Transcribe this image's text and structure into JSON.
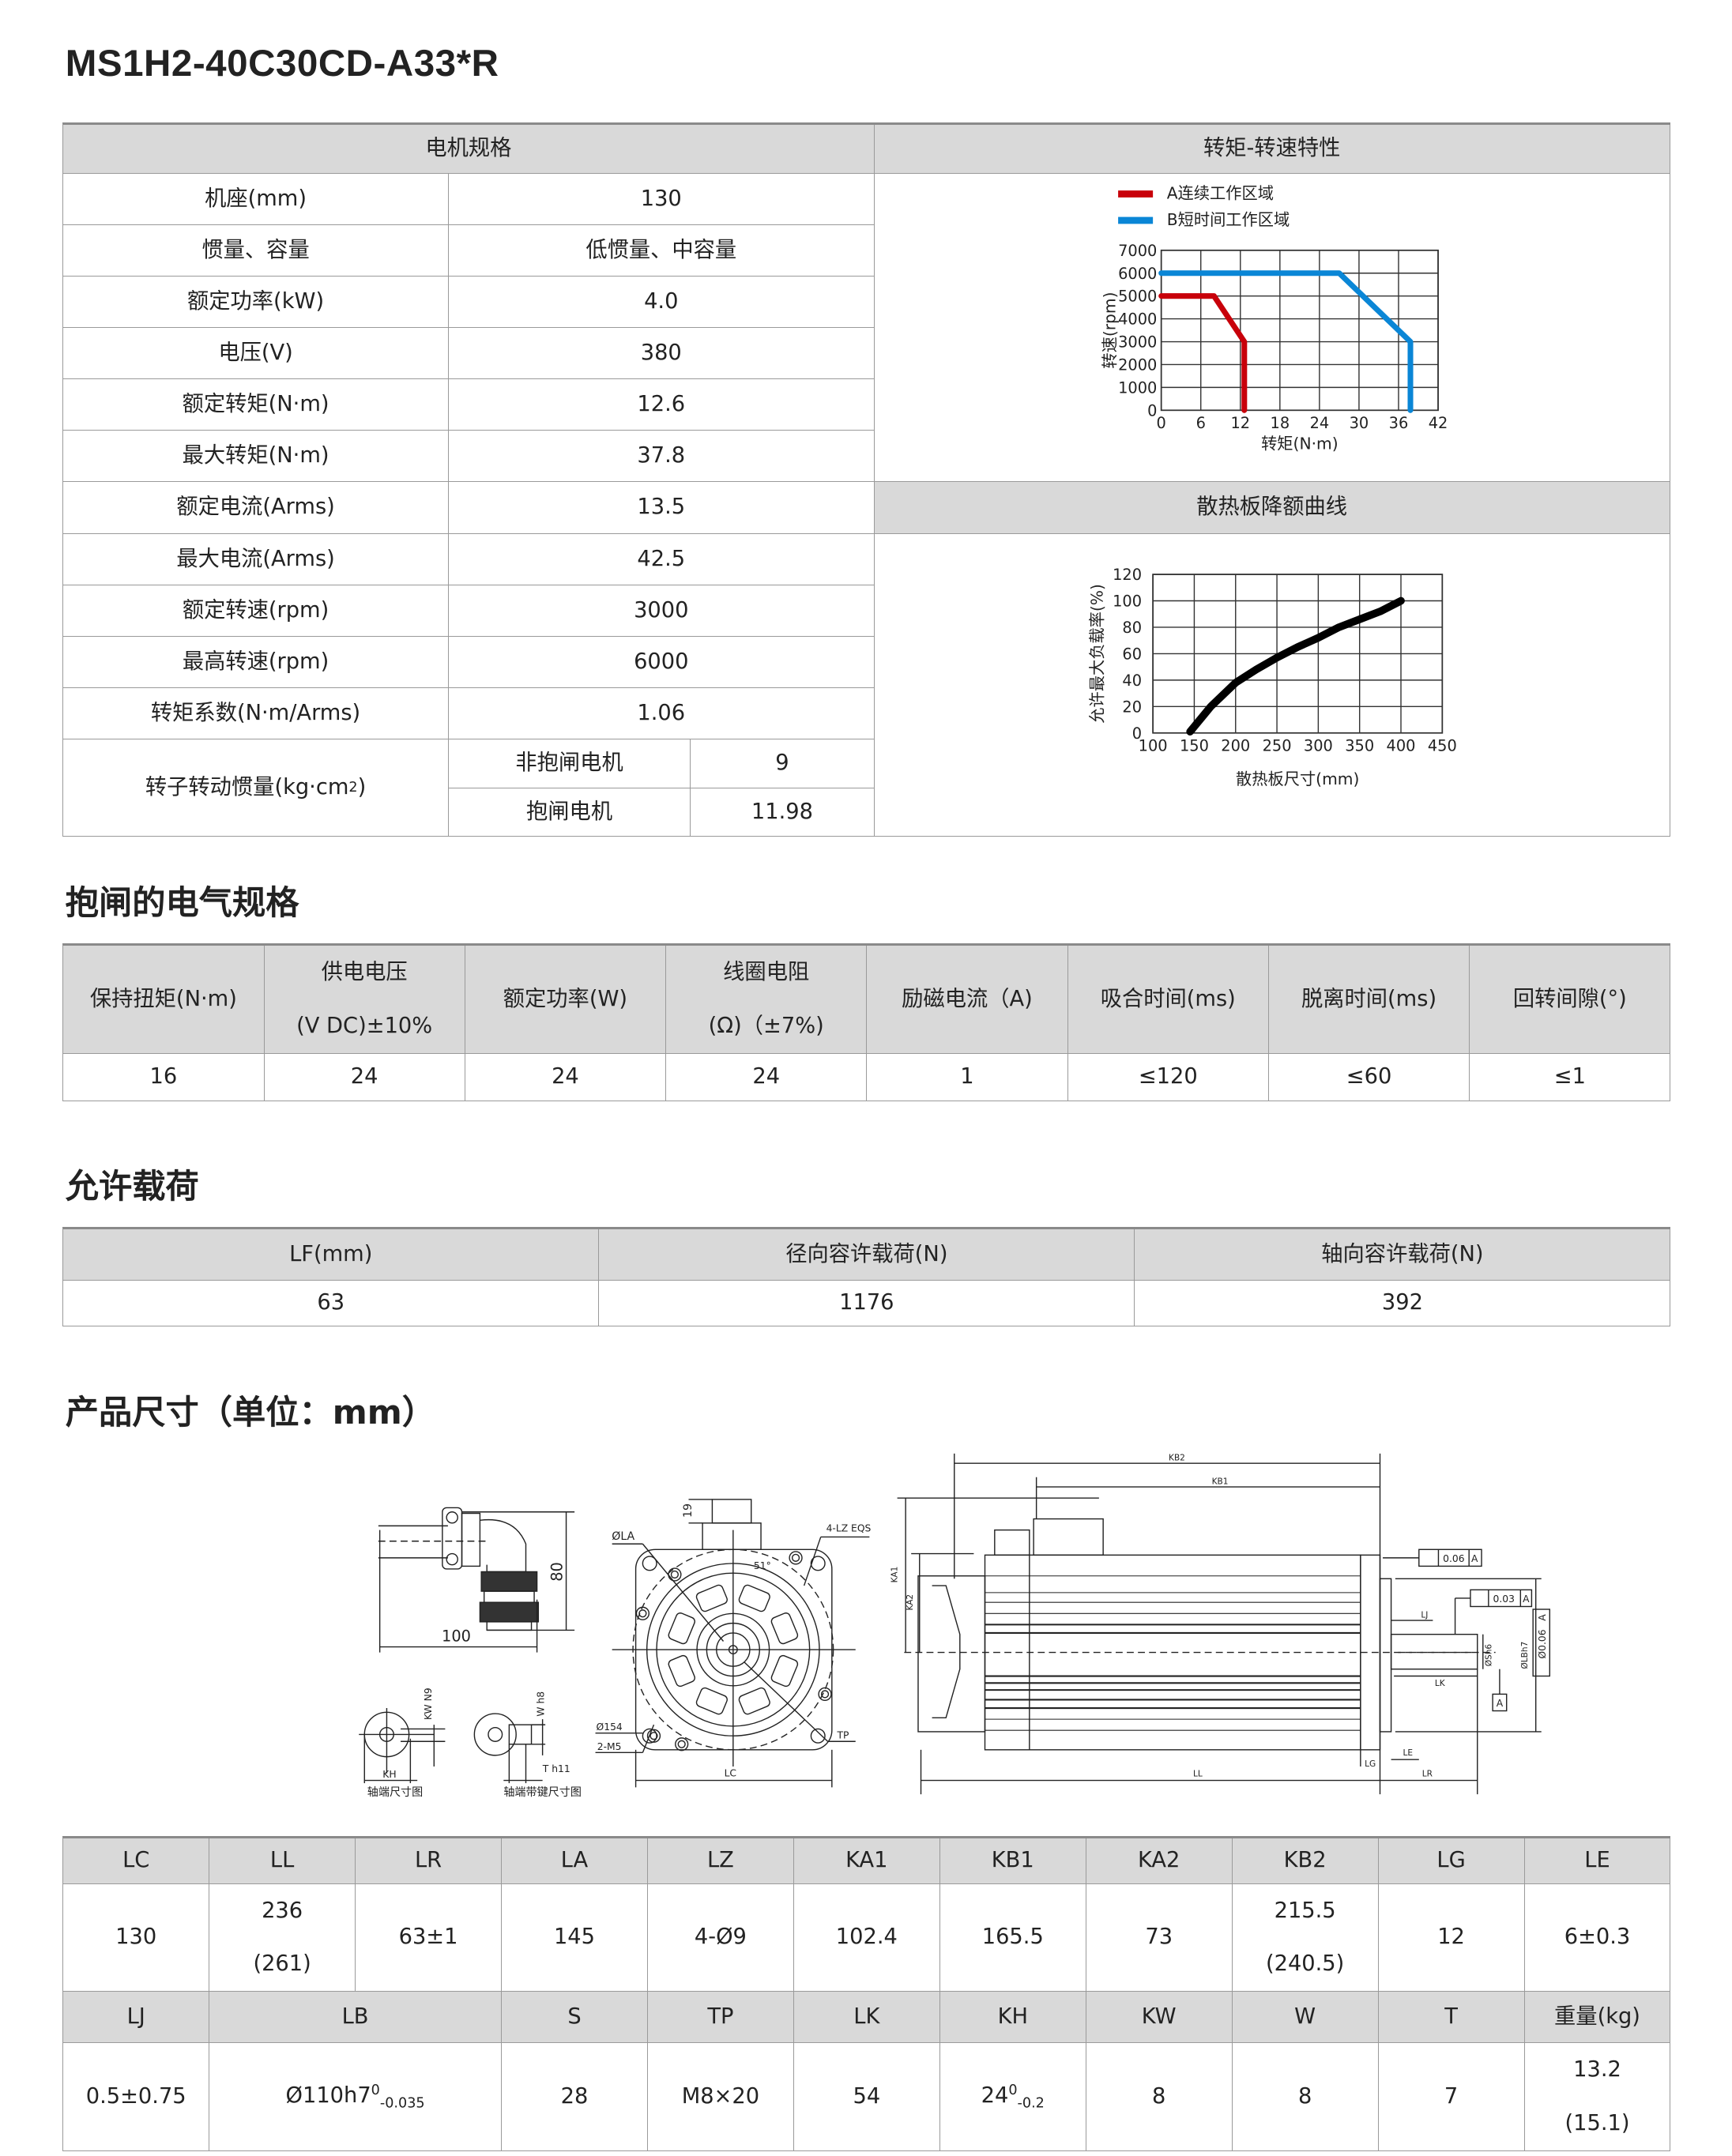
{
  "title": "MS1H2-40C30CD-A33*R",
  "spec": {
    "header_left": "电机规格",
    "header_torque": "转矩-转速特性",
    "header_derating": "散热板降额曲线",
    "rows": [
      {
        "label": "机座(mm)",
        "value": "130"
      },
      {
        "label": "惯量、容量",
        "value": "低惯量、中容量"
      },
      {
        "label": "额定功率(kW)",
        "value": "4.0"
      },
      {
        "label": "电压(V)",
        "value": "380"
      },
      {
        "label": "额定转矩(N·m)",
        "value": "12.6"
      },
      {
        "label": "最大转矩(N·m)",
        "value": "37.8"
      },
      {
        "label": "额定电流(Arms)",
        "value": "13.5"
      },
      {
        "label": "最大电流(Arms)",
        "value": "42.5"
      },
      {
        "label": "额定转速(rpm)",
        "value": "3000"
      },
      {
        "label": "最高转速(rpm)",
        "value": "6000"
      },
      {
        "label": "转矩系数(N·m/Arms)",
        "value": "1.06"
      }
    ],
    "inertia": {
      "label": "转子转动惯量(kg·cm",
      "label_sup": "2",
      "label_end": ")",
      "sub": [
        {
          "label": "非抱闸电机",
          "value": "9"
        },
        {
          "label": "抱闸电机",
          "value": "11.98"
        }
      ]
    }
  },
  "chart_data": [
    {
      "type": "line",
      "xlabel": "转矩(N·m)",
      "ylabel": "转速(rpm)",
      "xlim": [
        0,
        42
      ],
      "ylim": [
        0,
        7000
      ],
      "xticks": [
        0,
        6,
        12,
        18,
        24,
        30,
        36,
        42
      ],
      "yticks": [
        0,
        1000,
        2000,
        3000,
        4000,
        5000,
        6000,
        7000
      ],
      "grid": true,
      "legend_position": "top",
      "series": [
        {
          "name": "A连续工作区域",
          "color": "#c8000a",
          "x": [
            0,
            8,
            12.6,
            12.6
          ],
          "y": [
            5000,
            5000,
            3000,
            0
          ]
        },
        {
          "name": "B短时间工作区域",
          "color": "#0a86d6",
          "x": [
            0,
            27,
            37.8,
            37.8
          ],
          "y": [
            6000,
            6000,
            3000,
            0
          ]
        }
      ]
    },
    {
      "type": "line",
      "xlabel": "散热板尺寸(mm)",
      "ylabel": "允许最大负载率(%)",
      "xlim": [
        100,
        450
      ],
      "ylim": [
        0,
        120
      ],
      "xticks": [
        100,
        150,
        200,
        250,
        300,
        350,
        400,
        450
      ],
      "yticks": [
        0,
        20,
        40,
        60,
        80,
        100,
        120
      ],
      "grid": true,
      "series": [
        {
          "color": "#000000",
          "x": [
            145,
            170,
            200,
            225,
            250,
            275,
            300,
            325,
            350,
            375,
            400
          ],
          "y": [
            1,
            20,
            38,
            48,
            57,
            65,
            72,
            80,
            86,
            92,
            100
          ]
        }
      ]
    }
  ],
  "brake": {
    "title": "抱闸的电气规格",
    "headers": [
      [
        "保持扭矩(N·m)"
      ],
      [
        "供电电压",
        "(V DC)±10%"
      ],
      [
        "额定功率(W)"
      ],
      [
        "线圈电阻",
        "(Ω)（±7%)"
      ],
      [
        "励磁电流（A)"
      ],
      [
        "吸合时间(ms)"
      ],
      [
        "脱离时间(ms)"
      ],
      [
        "回转间隙(°)"
      ]
    ],
    "values": [
      "16",
      "24",
      "24",
      "24",
      "1",
      "≤120",
      "≤60",
      "≤1"
    ]
  },
  "load": {
    "title": "允许载荷",
    "headers": [
      "LF(mm)",
      "径向容许载荷(N)",
      "轴向容许载荷(N)"
    ],
    "values": [
      "63",
      "1176",
      "392"
    ]
  },
  "dims": {
    "title": "产品尺寸（单位：mm）",
    "row1_headers": [
      "LC",
      "LL",
      "LR",
      "LA",
      "LZ",
      "KA1",
      "KB1",
      "KA2",
      "KB2",
      "LG",
      "LE"
    ],
    "row1_values": [
      {
        "lines": [
          "130"
        ]
      },
      {
        "lines": [
          "236",
          "(261)"
        ]
      },
      {
        "lines": [
          "63±1"
        ]
      },
      {
        "lines": [
          "145"
        ]
      },
      {
        "lines": [
          "4-Ø9"
        ]
      },
      {
        "lines": [
          "102.4"
        ]
      },
      {
        "lines": [
          "165.5"
        ]
      },
      {
        "lines": [
          "73"
        ]
      },
      {
        "lines": [
          "215.5",
          "(240.5)"
        ]
      },
      {
        "lines": [
          "12"
        ]
      },
      {
        "lines": [
          "6±0.3"
        ]
      }
    ],
    "row2_headers": [
      "LJ",
      "LB",
      "S",
      "TP",
      "LK",
      "KH",
      "KW",
      "W",
      "T",
      "重量(kg)"
    ],
    "row2_values": [
      {
        "lines": [
          "0.5±0.75"
        ]
      },
      {
        "lines": [
          "Ø110h7"
        ],
        "sup": "0",
        "sub": "-0.035"
      },
      {
        "lines": [
          "28"
        ]
      },
      {
        "lines": [
          "M8×20"
        ]
      },
      {
        "lines": [
          "54"
        ]
      },
      {
        "lines": [
          "24"
        ],
        "sup": "0",
        "sub": "-0.2"
      },
      {
        "lines": [
          "8"
        ]
      },
      {
        "lines": [
          "8"
        ]
      },
      {
        "lines": [
          "7"
        ]
      },
      {
        "lines": [
          "13.2",
          "(15.1)"
        ]
      }
    ]
  },
  "drawing": {
    "labels": {
      "dim_80": "80",
      "dim_100": "100",
      "kw_n9": "KW N9",
      "kh": "KH",
      "shaft_caption": "轴端尺寸图",
      "w_h8": "W h8",
      "t_h11": "T h11",
      "keyed_shaft_caption": "轴端带键尺寸图",
      "dim_19": "19",
      "la": "ØLA",
      "lz": "4-LZ EQS",
      "angle": "51°",
      "d154": "Ø154",
      "m5": "2-M5",
      "tp": "TP",
      "lc": "LC",
      "kb2": "KB2",
      "kb1": "KB1",
      "ka1": "KA1",
      "ka2": "KA2",
      "ll": "LL",
      "lg": "LG",
      "le": "LE",
      "lr": "LR",
      "lj": "LJ",
      "lk": "LK",
      "perp_tol": "0.06",
      "runout_tol": "0.03",
      "datum": "A",
      "conc_tol": "Ø0.06",
      "sh6": "ØSh6",
      "lbh7": "ØLBh7"
    }
  },
  "colors": {
    "header_bg": "#d9d9d9",
    "continuous": "#c8000a",
    "short_time": "#0a86d6"
  }
}
